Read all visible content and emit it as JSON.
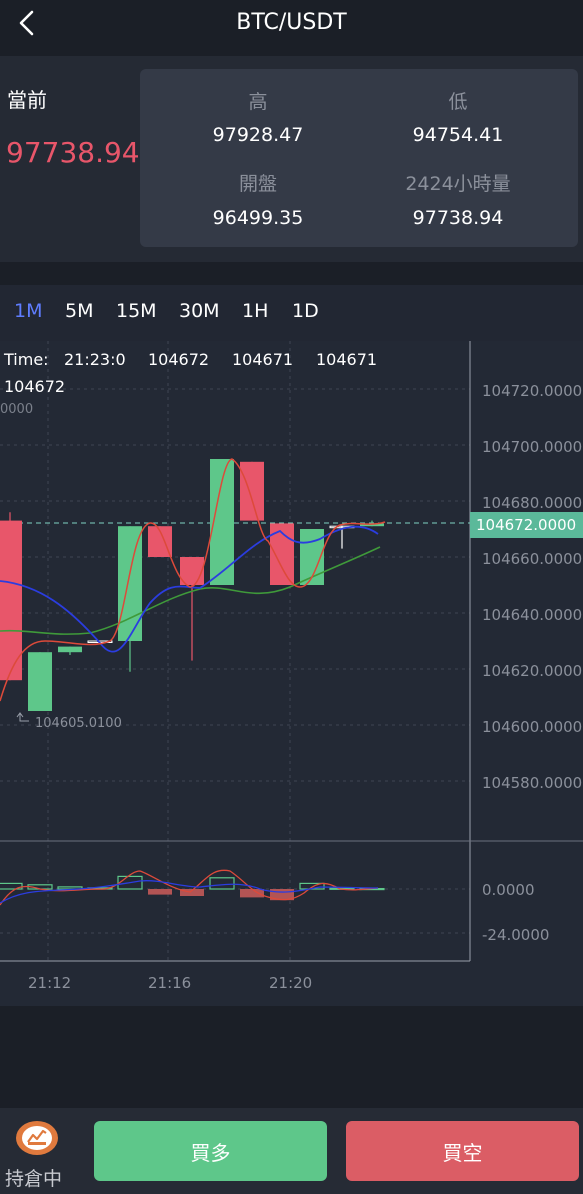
{
  "header": {
    "title": "BTC/USDT"
  },
  "quote": {
    "current_label": "當前",
    "current_price": "97738.94",
    "high_label": "高",
    "high_value": "97928.47",
    "low_label": "低",
    "low_value": "94754.41",
    "open_label": "開盤",
    "open_value": "96499.35",
    "volume_label": "2424小時量",
    "volume_value": "97738.94"
  },
  "periods": [
    "1M",
    "5M",
    "15M",
    "30M",
    "1H",
    "1D"
  ],
  "active_period": "1M",
  "chart_info": {
    "time_label": "Time:",
    "time_value": "21:23:0",
    "v1": "104672",
    "v2": "104671",
    "v3": "104671",
    "v4": "104672",
    "clipped_axis_label": "0000",
    "last_price_tag": "104672.0000",
    "low_marker": "104605.0100"
  },
  "chart_data": {
    "type": "candlestick",
    "price_axis_ticks": [
      "104720.0000",
      "104700.0000",
      "104680.0000",
      "104660.0000",
      "104640.0000",
      "104620.0000",
      "104600.0000",
      "104580.0000"
    ],
    "indicator_axis_ticks": [
      "0.0000",
      "-24.0000"
    ],
    "time_labels": [
      "21:12",
      "21:16",
      "21:20"
    ],
    "last_price": 104672.0,
    "low_marker": 104605.01,
    "candles": [
      {
        "open": 104673,
        "high": 104676,
        "low": 104616,
        "close": 104616,
        "color": "#e8566a"
      },
      {
        "open": 104605,
        "high": 104626,
        "low": 104605,
        "close": 104626,
        "color": "#5ec78a"
      },
      {
        "open": 104626,
        "high": 104628,
        "low": 104625,
        "close": 104628,
        "color": "#5ec78a"
      },
      {
        "open": 104630,
        "high": 104630,
        "low": 104630,
        "close": 104630,
        "color": "#ffffff"
      },
      {
        "open": 104630,
        "high": 104671,
        "low": 104619,
        "close": 104671,
        "color": "#5ec78a"
      },
      {
        "open": 104671,
        "high": 104671,
        "low": 104660,
        "close": 104660,
        "color": "#e8566a"
      },
      {
        "open": 104660,
        "high": 104660,
        "low": 104623,
        "close": 104650,
        "color": "#e8566a"
      },
      {
        "open": 104650,
        "high": 104695,
        "low": 104650,
        "close": 104695,
        "color": "#5ec78a"
      },
      {
        "open": 104694,
        "high": 104694,
        "low": 104673,
        "close": 104673,
        "color": "#e8566a"
      },
      {
        "open": 104672,
        "high": 104672,
        "low": 104650,
        "close": 104650,
        "color": "#e8566a"
      },
      {
        "open": 104650,
        "high": 104670,
        "low": 104650,
        "close": 104670,
        "color": "#5ec78a"
      },
      {
        "open": 104671,
        "high": 104671,
        "low": 104663,
        "close": 104671,
        "color": "#ffffff"
      },
      {
        "open": 104671,
        "high": 104673,
        "low": 104671,
        "close": 104672,
        "color": "#5ec78a"
      }
    ],
    "macd_bars": [
      {
        "value": 4,
        "color": "#5ec78a"
      },
      {
        "value": 3,
        "color": "#5ec78a"
      },
      {
        "value": 1.5,
        "color": "#5ec78a"
      },
      {
        "value": 0.8,
        "color": "#5ec78a"
      },
      {
        "value": 9,
        "color": "#5ec78a"
      },
      {
        "value": -4,
        "color": "#e8566a"
      },
      {
        "value": -5,
        "color": "#e8566a"
      },
      {
        "value": 8,
        "color": "#5ec78a"
      },
      {
        "value": -6,
        "color": "#e8566a"
      },
      {
        "value": -8,
        "color": "#e8566a"
      },
      {
        "value": 4,
        "color": "#5ec78a"
      },
      {
        "value": 0.5,
        "color": "#5ec78a"
      },
      {
        "value": 0.3,
        "color": "#5ec78a"
      }
    ]
  },
  "actions": {
    "holding_label": "持倉中",
    "buy_long": "買多",
    "buy_short": "買空"
  },
  "colors": {
    "up": "#5ec78a",
    "down": "#e8566a",
    "accent": "#5f7dff"
  }
}
